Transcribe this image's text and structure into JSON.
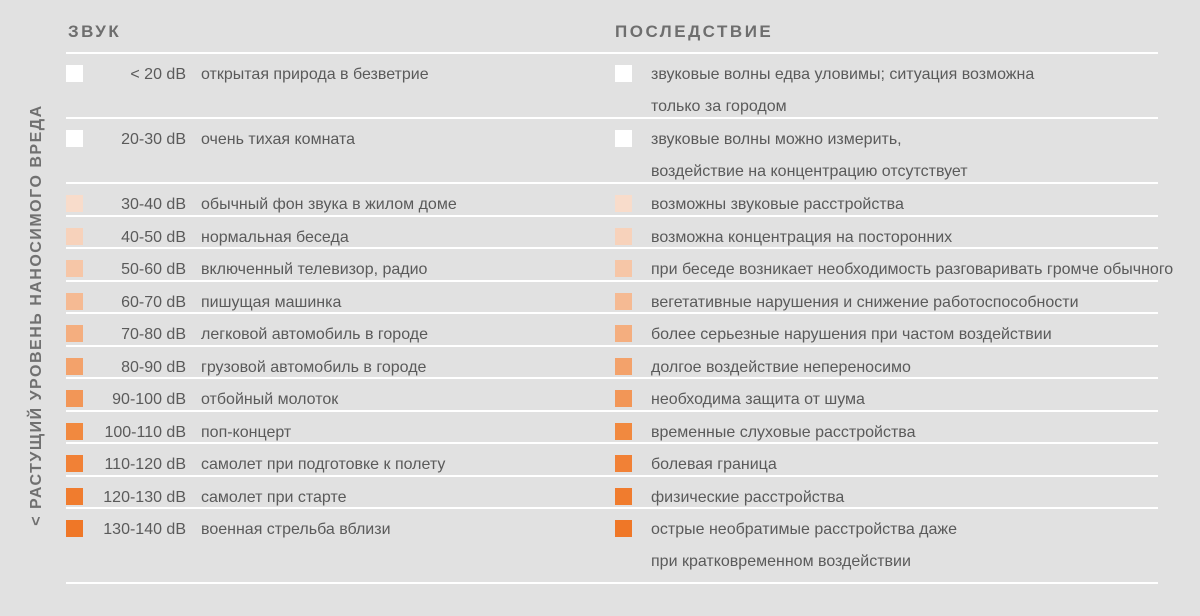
{
  "side_label": "< РАСТУЩИЙ УРОВЕНЬ НАНОСИМОГО ВРЕДА",
  "headers": {
    "sound": "ЗВУК",
    "effect": "ПОСЛЕДСТВИЕ"
  },
  "colors": {
    "background": "#e1e1e1",
    "divider": "#ffffff",
    "text": "#5a5a5a"
  },
  "rows": [
    {
      "level": "< 20 dB",
      "source": "открытая природа в безветрие",
      "effect": [
        "звуковые волны едва уловимы; ситуация возможна",
        "только за городом"
      ],
      "swatch": "#ffffff"
    },
    {
      "level": "20-30 dB",
      "source": "очень тихая комната",
      "effect": [
        "звуковые волны можно измерить,",
        "воздействие на концентрацию отсутствует"
      ],
      "swatch": "#ffffff"
    },
    {
      "level": "30-40 dB",
      "source": "обычный фон звука в жилом доме",
      "effect": [
        "возможны звуковые расстройства"
      ],
      "swatch": "#f8dccb"
    },
    {
      "level": "40-50 dB",
      "source": "нормальная беседа",
      "effect": [
        "возможна концентрация на посторонних"
      ],
      "swatch": "#f7d2bb"
    },
    {
      "level": "50-60 dB",
      "source": "включенный телевизор, радио",
      "effect": [
        "при беседе возникает необходимость разговаривать громче обычного"
      ],
      "swatch": "#f6c6a7"
    },
    {
      "level": "60-70 dB",
      "source": "пишущая машинка",
      "effect": [
        "вегетативные нарушения и снижение работоспособности"
      ],
      "swatch": "#f5ba93"
    },
    {
      "level": "70-80 dB",
      "source": "легковой автомобиль в городе",
      "effect": [
        "более серьезные нарушения при частом воздействии"
      ],
      "swatch": "#f4ae7f"
    },
    {
      "level": "80-90 dB",
      "source": "грузовой автомобиль в городе",
      "effect": [
        "долгое воздействие непереносимо"
      ],
      "swatch": "#f3a26b"
    },
    {
      "level": "90-100 dB",
      "source": "отбойный молоток",
      "effect": [
        "необходима защита от шума"
      ],
      "swatch": "#f29657"
    },
    {
      "level": "100-110 dB",
      "source": "поп-концерт",
      "effect": [
        "временные слуховые расстройства"
      ],
      "swatch": "#f1893f"
    },
    {
      "level": "110-120 dB",
      "source": "самолет при подготовке к полету",
      "effect": [
        "болевая граница"
      ],
      "swatch": "#f18136"
    },
    {
      "level": "120-130 dB",
      "source": "самолет при старте",
      "effect": [
        "физические расстройства"
      ],
      "swatch": "#f07c2e"
    },
    {
      "level": "130-140 dB",
      "source": "военная стрельба вблизи",
      "effect": [
        "острые необратимые расстройства даже",
        "при кратковременном воздействии"
      ],
      "swatch": "#ef7727"
    }
  ]
}
